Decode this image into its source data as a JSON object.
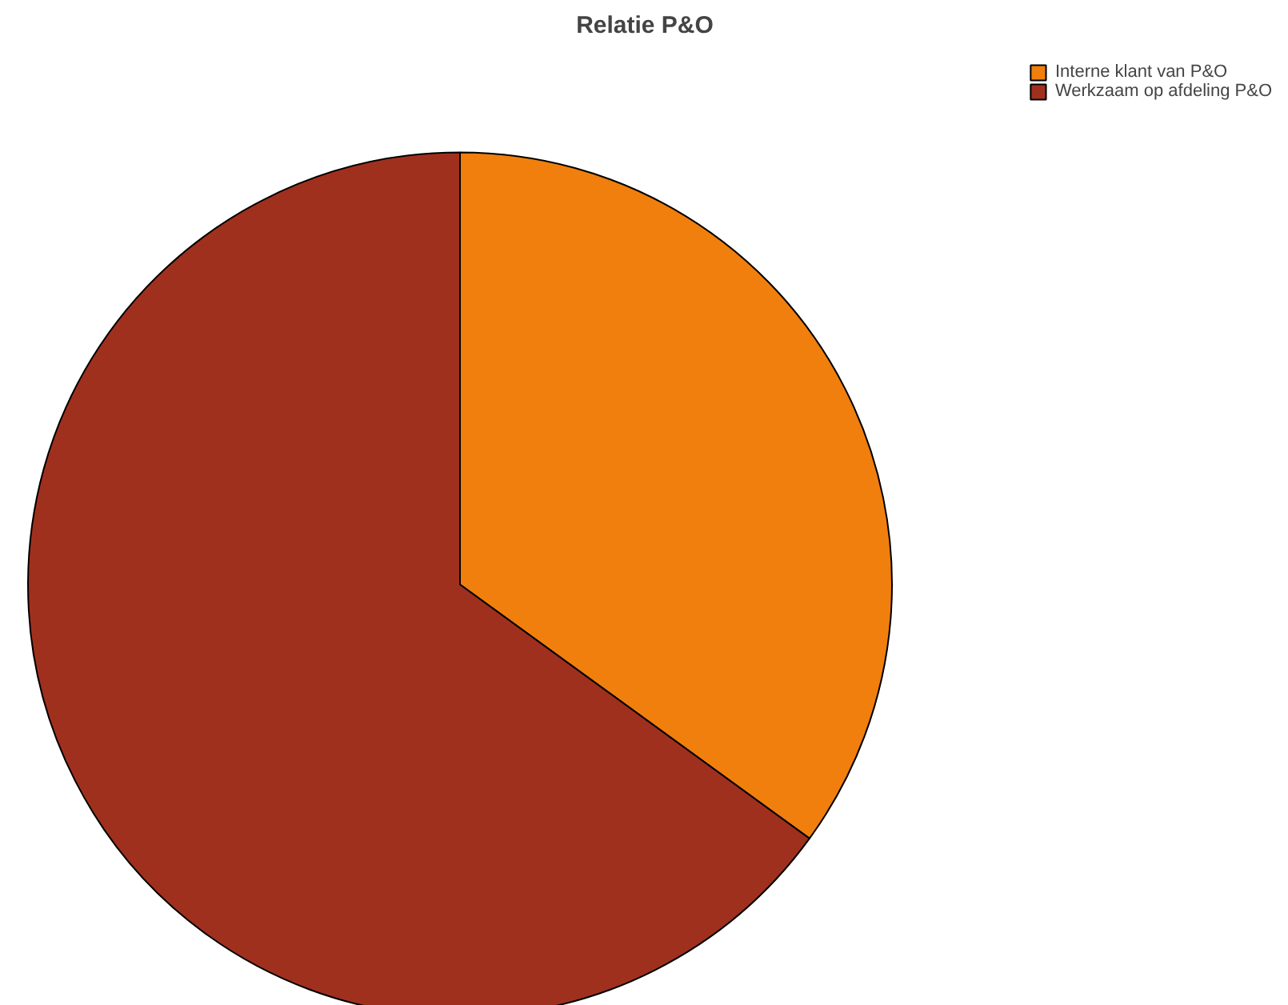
{
  "chart_data": {
    "type": "pie",
    "title": "Relatie P&O",
    "categories": [
      "Interne klant van P&O",
      "Werkzaam op afdeling P&O"
    ],
    "values": [
      35,
      65
    ],
    "colors": [
      "#f07f0e",
      "#a0301e"
    ],
    "legend": "top right"
  }
}
